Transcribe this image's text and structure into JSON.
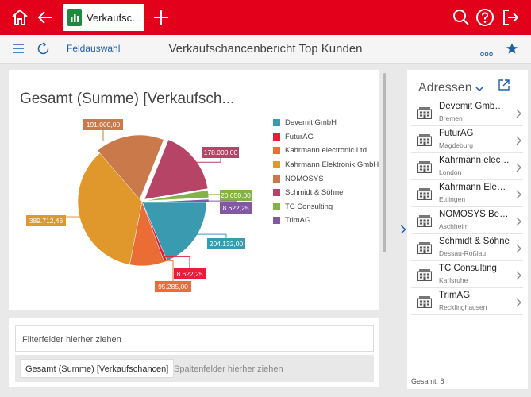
{
  "app": {
    "tab_label": "Verkaufschancen...",
    "brand_color": "#e2001a"
  },
  "toolbar": {
    "field_selection": "Feldauswahl",
    "report_title": "Verkaufschancenbericht Top Kunden"
  },
  "chart_data": {
    "type": "pie",
    "title": "Gesamt (Summe) [Verkaufsch...",
    "categories": [
      "Devemit GmbH",
      "FuturAG",
      "Kahrmann electronic Ltd.",
      "Kahrmann Elektronik GmbH",
      "NOMOSYS",
      "Schmidt & Söhne",
      "TC Consulting",
      "TrimAG"
    ],
    "values": [
      204132.0,
      8622.25,
      95285.0,
      389712.46,
      191000.0,
      178000.0,
      20650.0,
      8622.25
    ],
    "data_labels": [
      "204.132,00",
      "8.622,25",
      "95.285,00",
      "389.712,46",
      "191.000,00",
      "178.000,00",
      "20.650,00",
      "8.622,25"
    ],
    "colors": [
      "#3a9bb0",
      "#e51f3a",
      "#eb6d35",
      "#e0982c",
      "#c9794a",
      "#b64467",
      "#84b345",
      "#8258a3"
    ],
    "legend_position": "right"
  },
  "filters": {
    "filter_placeholder": "Filterfelder hierher ziehen",
    "column_chip": "Gesamt (Summe) [Verkaufschancen]",
    "column_placeholder": "Spaltenfelder hierher ziehen"
  },
  "addresses": {
    "header": "Adressen",
    "items": [
      {
        "name": "Devemit GmbH ...",
        "city": "Bremen"
      },
      {
        "name": "FuturAG",
        "city": "Magdeburg"
      },
      {
        "name": "Kahrmann elect...",
        "city": "London"
      },
      {
        "name": "Kahrmann Elekt...",
        "city": "Ettlingen"
      },
      {
        "name": "NOMOSYS Bera...",
        "city": "Aschheim"
      },
      {
        "name": "Schmidt & Söhne",
        "city": "Dessau-Roßlau"
      },
      {
        "name": "TC Consulting",
        "city": "Karlsruhe"
      },
      {
        "name": "TrimAG",
        "city": "Recklinghausen"
      }
    ],
    "total": "Gesamt: 8"
  }
}
